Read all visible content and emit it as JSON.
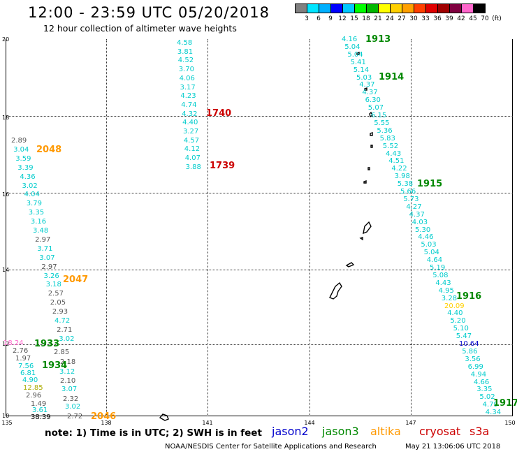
{
  "header": {
    "title": "12:00 - 23:59 UTC 05/20/2018",
    "subtitle": "12 hour collection of altimeter wave heights"
  },
  "color_scale": {
    "labels": [
      "3",
      "6",
      "9",
      "12",
      "15",
      "18",
      "21",
      "24",
      "27",
      "30",
      "33",
      "36",
      "39",
      "42",
      "45",
      "70",
      "(ft)"
    ],
    "colors": [
      "#808080",
      "#00e5ff",
      "#00b0ff",
      "#0000ff",
      "#00c8ff",
      "#00ff00",
      "#00b800",
      "#ffff00",
      "#ffd000",
      "#ffa000",
      "#ff4000",
      "#e00000",
      "#a00000",
      "#800040",
      "#ff66cc",
      "#000000"
    ]
  },
  "axes": {
    "lat_labels": [
      "20",
      "18",
      "16",
      "14",
      "12",
      "10"
    ],
    "lon_labels": [
      "135",
      "138",
      "141",
      "144",
      "147",
      "150"
    ]
  },
  "colors": {
    "jason2": "#0000cc",
    "jason3": "#008800",
    "altika": "#ff9900",
    "cryosat": "#cc0000",
    "s3a": "#cc0000",
    "gray": "#555555",
    "cyan": "#00cccc",
    "green": "#008800"
  },
  "tracks": {
    "c1": [
      "4.58",
      "3.81",
      "4.52",
      "3.70",
      "4.06",
      "3.17",
      "4.23",
      "4.74",
      "4.32",
      "4.40",
      "3.27",
      "4.57",
      "4.12",
      "4.07",
      "3.88"
    ],
    "c2": [
      "4.16",
      "5.04",
      "5.04",
      "5.41",
      "5.14",
      "5.03",
      "4.37",
      "4.37",
      "6.30",
      "5.07",
      "6.15",
      "5.55",
      "5.36",
      "5.83",
      "5.52",
      "4.43",
      "4.51",
      "4.22",
      "3.98",
      "5.38",
      "5.66",
      "5.73",
      "4.27",
      "4.37",
      "4.03",
      "5.30",
      "4.46",
      "5.03",
      "5.04",
      "4.64",
      "5.19",
      "5.08",
      "4.43",
      "4.95",
      "3.28",
      "20.09",
      "4.40",
      "5.20",
      "5.10",
      "5.47",
      "10.64",
      "5.86",
      "3.56",
      "6.99",
      "4.94",
      "4.66",
      "3.35",
      "5.02",
      "4.79",
      "4.34"
    ],
    "c3": [
      "2.89",
      "3.04",
      "3.59",
      "3.39",
      "4.36",
      "3.02",
      "4.04",
      "3.79",
      "3.35",
      "3.16",
      "3.48",
      "2.97",
      "3.71",
      "3.07",
      "2.97",
      "3.26",
      "3.18",
      "2.57",
      "2.05",
      "2.93",
      "4.72",
      "2.71",
      "3.02"
    ],
    "c4": [
      "18.24",
      "2.76",
      "1.97",
      "7.56",
      "6.81",
      "4.90",
      "12.85",
      "2.96",
      "1.49",
      "3.61",
      "38.39"
    ],
    "c5": [
      "2.85",
      "2.18",
      "3.12",
      "2.10",
      "3.07",
      "2.32",
      "3.02",
      "2.72"
    ]
  },
  "time_labels": {
    "t1913": "1913",
    "t1914": "1914",
    "t1915": "1915",
    "t1916": "1916",
    "t1917": "1917",
    "t1740": "1740",
    "t1739": "1739",
    "t2048": "2048",
    "t2047": "2047",
    "t2046": "2046",
    "t1933": "1933",
    "t1934": "1934"
  },
  "footer": {
    "note": "note: 1) Time is in UTC; 2) SWH is in feet",
    "jason2": "jason2",
    "jason3": "jason3",
    "altika": "altika",
    "cryosat": "cryosat",
    "s3a": "s3a",
    "credit": "NOAA/NESDIS Center for Satellite Applications and Research",
    "timestamp": "May 21 13:06:06 UTC 2018"
  }
}
